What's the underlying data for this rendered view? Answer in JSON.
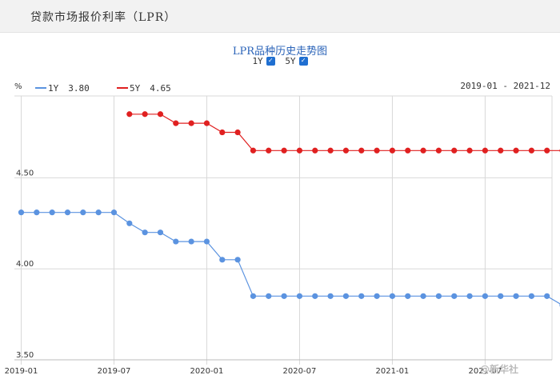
{
  "page": {
    "title": "贷款市场报价利率（LPR）"
  },
  "chart_panel": {
    "title": "LPR品种历史走势图",
    "toggles": [
      {
        "label": "1Y",
        "checked": true
      },
      {
        "label": "5Y",
        "checked": true
      }
    ],
    "unit": "%",
    "date_range": "2019-01 - 2021-12"
  },
  "watermark": "@新华社",
  "chart_data": {
    "type": "line",
    "x": [
      "2019-01",
      "2019-02",
      "2019-03",
      "2019-04",
      "2019-05",
      "2019-06",
      "2019-07",
      "2019-08",
      "2019-09",
      "2019-10",
      "2019-11",
      "2019-12",
      "2020-01",
      "2020-02",
      "2020-03",
      "2020-04",
      "2020-05",
      "2020-06",
      "2020-07",
      "2020-08",
      "2020-09",
      "2020-10",
      "2020-11",
      "2020-12",
      "2021-01",
      "2021-02",
      "2021-03",
      "2021-04",
      "2021-05",
      "2021-06",
      "2021-07",
      "2021-08",
      "2021-09",
      "2021-10",
      "2021-11",
      "2021-12"
    ],
    "tick_labels": [
      "2019-01",
      "2019-07",
      "2020-01",
      "2020-07",
      "2021-01",
      "2021-07"
    ],
    "y_ticks": [
      "3.50",
      "4.00",
      "4.50"
    ],
    "ylim": [
      3.5,
      4.95
    ],
    "grid": true,
    "legend_position": "top-left",
    "series": [
      {
        "name": "1Y",
        "legend_value": "3.80",
        "color": "#5b93e0",
        "values": [
          4.31,
          4.31,
          4.31,
          4.31,
          4.31,
          4.31,
          4.31,
          4.25,
          4.2,
          4.2,
          4.15,
          4.15,
          4.15,
          4.05,
          4.05,
          3.85,
          3.85,
          3.85,
          3.85,
          3.85,
          3.85,
          3.85,
          3.85,
          3.85,
          3.85,
          3.85,
          3.85,
          3.85,
          3.85,
          3.85,
          3.85,
          3.85,
          3.85,
          3.85,
          3.85,
          3.8
        ]
      },
      {
        "name": "5Y",
        "legend_value": "4.65",
        "color": "#e02020",
        "values": [
          null,
          null,
          null,
          null,
          null,
          null,
          null,
          4.85,
          4.85,
          4.85,
          4.8,
          4.8,
          4.8,
          4.75,
          4.75,
          4.65,
          4.65,
          4.65,
          4.65,
          4.65,
          4.65,
          4.65,
          4.65,
          4.65,
          4.65,
          4.65,
          4.65,
          4.65,
          4.65,
          4.65,
          4.65,
          4.65,
          4.65,
          4.65,
          4.65,
          4.65
        ]
      }
    ]
  }
}
